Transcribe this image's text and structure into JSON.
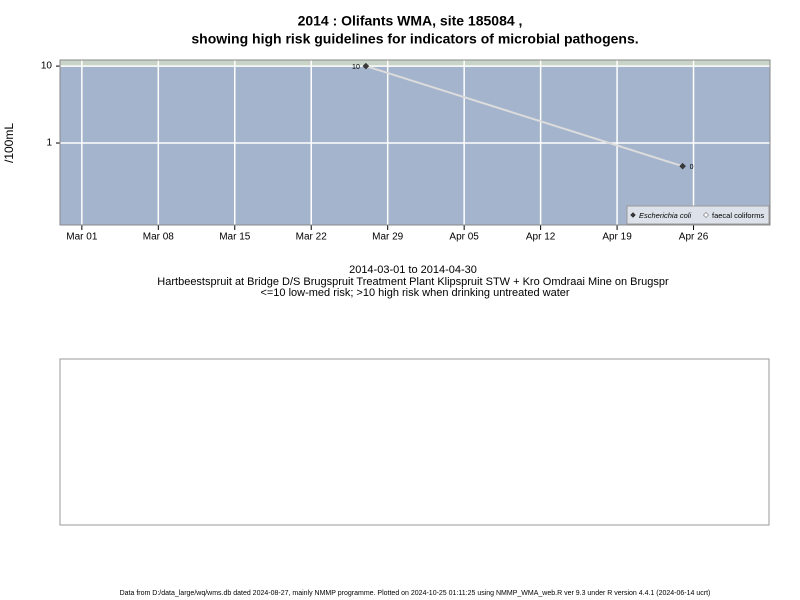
{
  "chart_data": {
    "type": "line",
    "title": [
      "2014 : Olifants WMA, site 185084 ,",
      "showing high risk guidelines for indicators of microbial pathogens."
    ],
    "ylabel": "/100mL",
    "log_y": true,
    "grid": true,
    "risk_threshold": 10,
    "x": [
      "2014-03-27",
      "2014-04-25"
    ],
    "series": [
      {
        "name": "Escherichia coli",
        "color": "#3a3a3a",
        "line_color": "#dcdcdc",
        "values": [
          10,
          0.5
        ],
        "value_labels": [
          "10",
          "0"
        ]
      },
      {
        "name": "faecal coliforms",
        "color": "#ffffff",
        "line_color": "#dcdcdc",
        "values": [
          null,
          null
        ]
      }
    ],
    "xlim": [
      "2014-02-27",
      "2014-05-03"
    ],
    "xticks": [
      {
        "value": "2014-03-01",
        "label": "Mar 01"
      },
      {
        "value": "2014-03-08",
        "label": "Mar 08"
      },
      {
        "value": "2014-03-15",
        "label": "Mar 15"
      },
      {
        "value": "2014-03-22",
        "label": "Mar 22"
      },
      {
        "value": "2014-03-29",
        "label": "Mar 29"
      },
      {
        "value": "2014-04-05",
        "label": "Apr 05"
      },
      {
        "value": "2014-04-12",
        "label": "Apr 12"
      },
      {
        "value": "2014-04-19",
        "label": "Apr 19"
      },
      {
        "value": "2014-04-26",
        "label": "Apr 26"
      }
    ],
    "ylim": [
      0.086,
      12
    ],
    "yticks": [
      1,
      10
    ],
    "legend_position": "bottom-right",
    "notes": [
      "2014-03-01 to 2014-04-30",
      "Hartbeestspruit at Bridge D/S Brugspruit Treatment Plant Klipspruit STW + Kro Omdraai Mine on Brugspr",
      "<=10 low-med risk; >10 high risk when drinking untreated water"
    ],
    "footer": "Data from D:/data_large/wq/wms.db dated 2024-08-27, mainly NMMP programme. Plotted on 2024-10-25 01:11:25 using NMMP_WMA_web.R ver 9.3 under R version 4.4.1 (2024-06-14 ucrt)"
  }
}
